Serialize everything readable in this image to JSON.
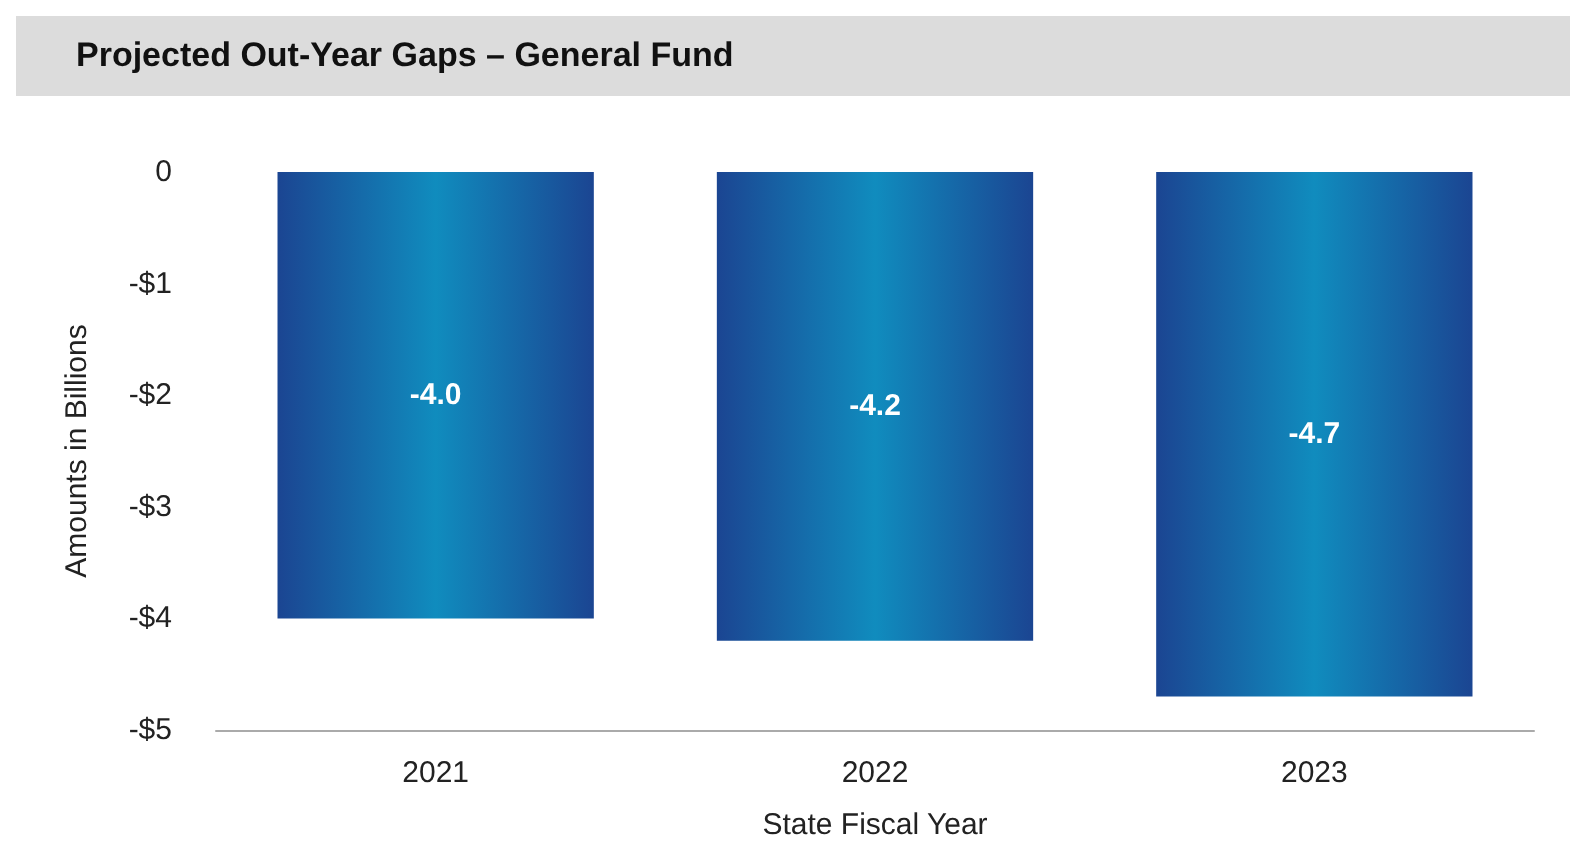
{
  "chart_data": {
    "type": "bar",
    "title": "Projected Out-Year Gaps – General Fund",
    "xlabel": "State Fiscal Year",
    "ylabel": "Amounts in Billions",
    "categories": [
      "2021",
      "2022",
      "2023"
    ],
    "values": [
      -4.0,
      -4.2,
      -4.7
    ],
    "value_labels": [
      "-4.0",
      "-4.2",
      "-4.7"
    ],
    "color": "#1b4592",
    "ylim": [
      -5,
      0
    ],
    "yticks": [
      {
        "value": -5,
        "label": "-$5"
      },
      {
        "value": -4,
        "label": "-$4"
      },
      {
        "value": -3,
        "label": "-$3"
      },
      {
        "value": -2,
        "label": "-$2"
      },
      {
        "value": -1,
        "label": "-$1"
      },
      0
    ],
    "grid": false
  }
}
